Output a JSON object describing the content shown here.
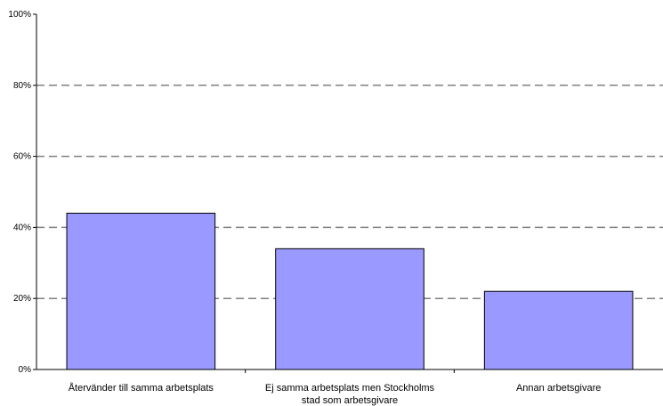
{
  "chart_data": {
    "type": "bar",
    "title": "",
    "xlabel": "",
    "ylabel": "",
    "categories": [
      [
        "Återvänder till samma arbetsplats"
      ],
      [
        "Ej samma arbetsplats men Stockholms",
        "stad som arbetsgivare"
      ],
      [
        "Annan arbetsgivare"
      ]
    ],
    "values": [
      44,
      34,
      22
    ],
    "ylim": [
      0,
      100
    ],
    "yticks": [
      "0%",
      "20%",
      "40%",
      "60%",
      "80%",
      "100%"
    ],
    "grid": true,
    "bar_color": "#9999ff",
    "bar_border_color": "#000000",
    "grid_color": "#808080"
  }
}
